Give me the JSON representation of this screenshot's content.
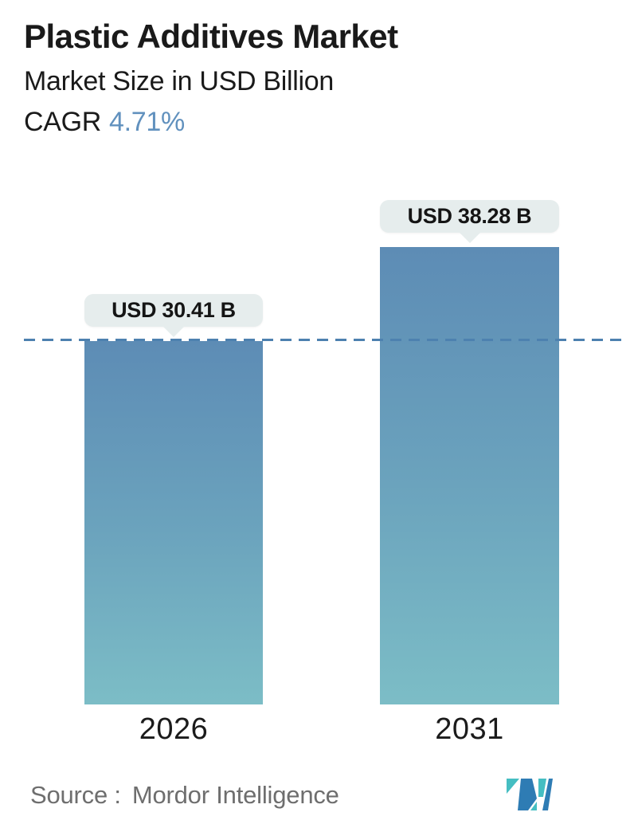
{
  "header": {
    "title": "Plastic Additives Market",
    "subtitle": "Market Size in USD Billion",
    "cagr_label": "CAGR",
    "cagr_value": "4.71%"
  },
  "chart_data": {
    "type": "bar",
    "title": "Plastic Additives Market",
    "ylabel": "Market Size in USD Billion",
    "unit": "USD Billion",
    "cagr_percent": 4.71,
    "categories": [
      "2026",
      "2031"
    ],
    "values": [
      30.41,
      38.28
    ],
    "value_labels": [
      "USD 30.41 B",
      "USD 38.28 B"
    ],
    "reference_line": {
      "style": "dashed",
      "value": 30.41
    },
    "axes_visible": false,
    "grid": false,
    "legend": "none"
  },
  "footer": {
    "source_label": "Source :",
    "source_value": "Mordor Intelligence",
    "logo": "mordor-intelligence-logo"
  },
  "colors": {
    "accent": "#6191BE",
    "bar_top": "#5D8CB5",
    "bar_mid": "#6BA3BD",
    "bar_bottom": "#7CBDC6",
    "reference_line": "#4D81AF",
    "bubble_bg": "#E6EDED",
    "text_primary": "#1A1A1A",
    "text_muted": "#6E6E6E",
    "logo_teal": "#45BEC2",
    "logo_blue": "#2E7CB4"
  }
}
